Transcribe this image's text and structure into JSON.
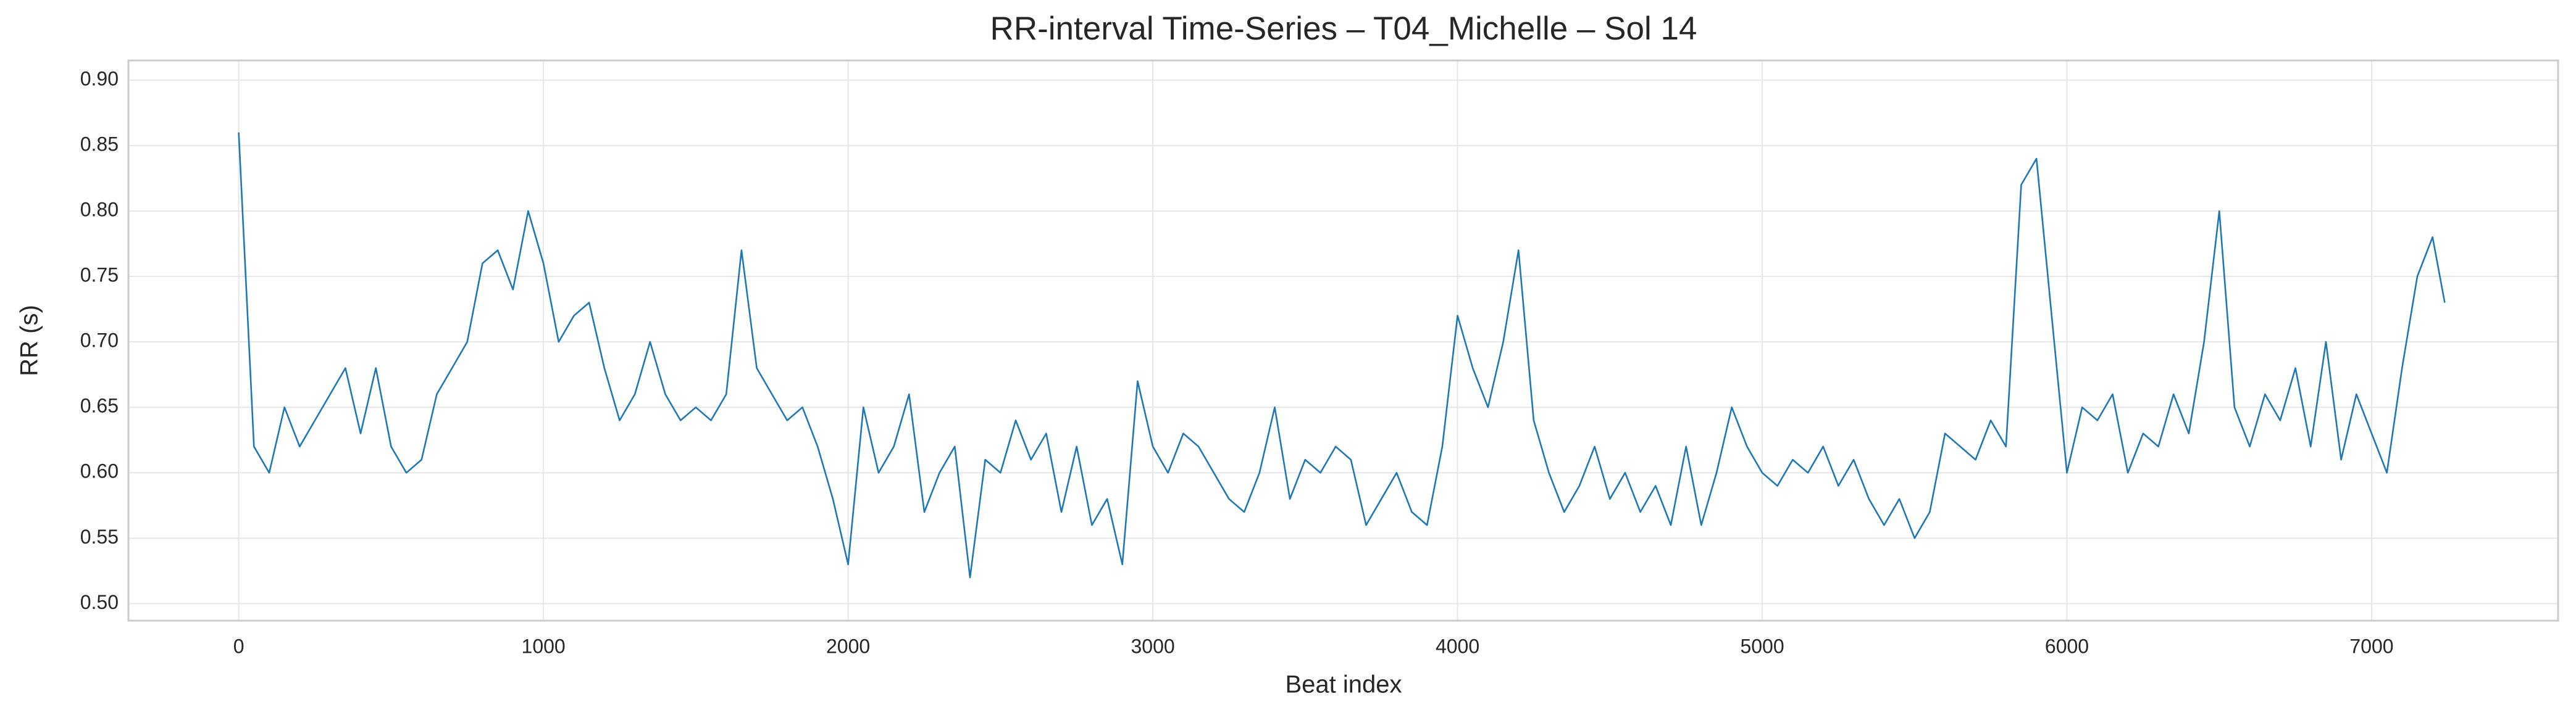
{
  "chart_data": {
    "type": "line",
    "title": "RR-interval Time-Series – T04_Michelle – Sol 14",
    "x_label": "Beat index",
    "y_label": "RR (s)",
    "x": [
      0,
      50,
      100,
      150,
      200,
      250,
      300,
      350,
      400,
      450,
      500,
      550,
      600,
      650,
      700,
      750,
      800,
      850,
      900,
      950,
      1000,
      1050,
      1100,
      1150,
      1200,
      1250,
      1300,
      1350,
      1400,
      1450,
      1500,
      1550,
      1600,
      1650,
      1700,
      1750,
      1800,
      1850,
      1900,
      1950,
      2000,
      2050,
      2100,
      2150,
      2200,
      2250,
      2300,
      2350,
      2400,
      2450,
      2500,
      2550,
      2600,
      2650,
      2700,
      2750,
      2800,
      2850,
      2900,
      2950,
      3000,
      3050,
      3100,
      3150,
      3200,
      3250,
      3300,
      3350,
      3400,
      3450,
      3500,
      3550,
      3600,
      3650,
      3700,
      3750,
      3800,
      3850,
      3900,
      3950,
      4000,
      4050,
      4100,
      4150,
      4200,
      4250,
      4300,
      4350,
      4400,
      4450,
      4500,
      4550,
      4600,
      4650,
      4700,
      4750,
      4800,
      4850,
      4900,
      4950,
      5000,
      5050,
      5100,
      5150,
      5200,
      5250,
      5300,
      5350,
      5400,
      5450,
      5500,
      5550,
      5600,
      5650,
      5700,
      5750,
      5800,
      5850,
      5900,
      5950,
      6000,
      6050,
      6100,
      6150,
      6200,
      6250,
      6300,
      6350,
      6400,
      6450,
      6500,
      6550,
      6600,
      6650,
      6700,
      6750,
      6800,
      6850,
      6900,
      6950,
      7000,
      7050,
      7100,
      7150,
      7200,
      7240
    ],
    "values": [
      0.86,
      0.62,
      0.6,
      0.65,
      0.62,
      0.64,
      0.66,
      0.68,
      0.63,
      0.68,
      0.62,
      0.6,
      0.61,
      0.66,
      0.68,
      0.7,
      0.76,
      0.77,
      0.74,
      0.8,
      0.76,
      0.7,
      0.72,
      0.73,
      0.68,
      0.64,
      0.66,
      0.7,
      0.66,
      0.64,
      0.65,
      0.64,
      0.66,
      0.77,
      0.68,
      0.66,
      0.64,
      0.65,
      0.62,
      0.58,
      0.53,
      0.65,
      0.6,
      0.62,
      0.66,
      0.57,
      0.6,
      0.62,
      0.52,
      0.61,
      0.6,
      0.64,
      0.61,
      0.63,
      0.57,
      0.62,
      0.56,
      0.58,
      0.53,
      0.67,
      0.62,
      0.6,
      0.63,
      0.62,
      0.6,
      0.58,
      0.57,
      0.6,
      0.65,
      0.58,
      0.61,
      0.6,
      0.62,
      0.61,
      0.56,
      0.58,
      0.6,
      0.57,
      0.56,
      0.62,
      0.72,
      0.68,
      0.65,
      0.7,
      0.77,
      0.64,
      0.6,
      0.57,
      0.59,
      0.62,
      0.58,
      0.6,
      0.57,
      0.59,
      0.56,
      0.62,
      0.56,
      0.6,
      0.65,
      0.62,
      0.6,
      0.59,
      0.61,
      0.6,
      0.62,
      0.59,
      0.61,
      0.58,
      0.56,
      0.58,
      0.55,
      0.57,
      0.63,
      0.62,
      0.61,
      0.64,
      0.62,
      0.82,
      0.84,
      0.72,
      0.6,
      0.65,
      0.64,
      0.66,
      0.6,
      0.63,
      0.62,
      0.66,
      0.63,
      0.7,
      0.8,
      0.65,
      0.62,
      0.66,
      0.64,
      0.68,
      0.62,
      0.7,
      0.61,
      0.66,
      0.63,
      0.6,
      0.68,
      0.75,
      0.78,
      0.73
    ],
    "color": "#1f77b4",
    "xlim": [
      -362,
      7612
    ],
    "ylim": [
      0.487,
      0.915
    ],
    "xticks": [
      0,
      1000,
      2000,
      3000,
      4000,
      5000,
      6000,
      7000
    ],
    "yticks": [
      {
        "value": 0.5,
        "label": "0.50"
      },
      0.55,
      {
        "value": 0.6,
        "label": "0.60"
      },
      0.65,
      {
        "value": 0.7,
        "label": "0.70"
      },
      0.75,
      {
        "value": 0.8,
        "label": "0.80"
      },
      0.85,
      {
        "value": 0.9,
        "label": "0.90"
      }
    ],
    "grid": true
  }
}
